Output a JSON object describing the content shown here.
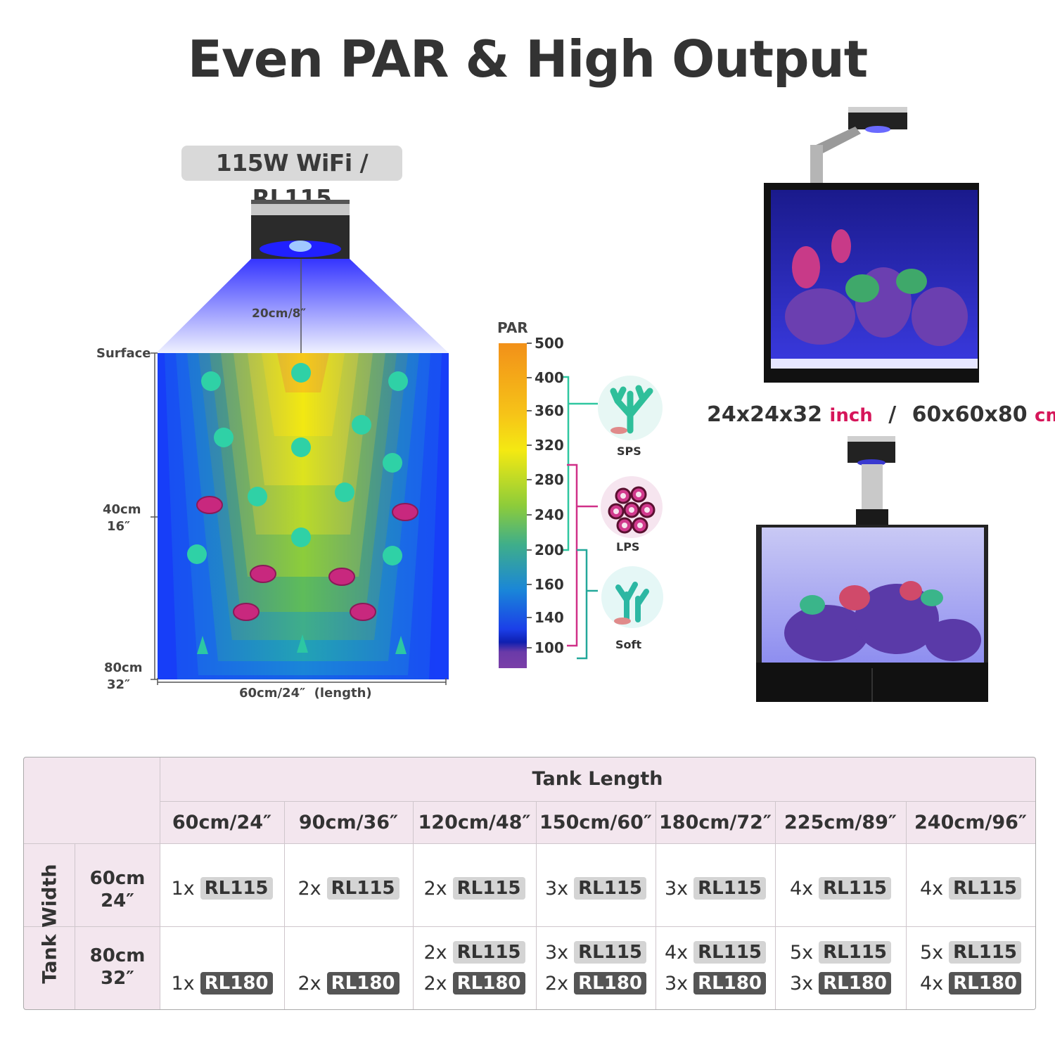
{
  "title": "Even PAR & High Output",
  "model_badge": "115W WiFi / RL115",
  "diagram": {
    "mount_height": "20cm/8″",
    "surface": "Surface",
    "depth_mid_cm": "40cm",
    "depth_mid_in": "16″",
    "depth_bottom_cm": "80cm",
    "depth_bottom_in": "32″",
    "length": "60cm/24″  (length)"
  },
  "scale": {
    "title": "PAR",
    "ticks": [
      "500",
      "400",
      "360",
      "320",
      "280",
      "240",
      "200",
      "160",
      "140",
      "100"
    ],
    "colors": {
      "top": "#f2a019",
      "mid": "#f4dd12",
      "green": "#6fbf3b",
      "blue": "#1e4ee6",
      "bottom": "#7b3fa8"
    }
  },
  "corals": [
    {
      "label": "SPS",
      "color": "#2fbf9a"
    },
    {
      "label": "LPS",
      "color": "#c8287e"
    },
    {
      "label": "Soft",
      "color": "#2cb7a3"
    }
  ],
  "tank_dims": {
    "inch_value": "24x24x32",
    "inch_unit": "inch",
    "sep": "/",
    "cm_value": "60x60x80",
    "cm_unit": "cm"
  },
  "table": {
    "col_group_header": "Tank Length",
    "row_group_header": "Tank Width",
    "columns": [
      "60cm/24″",
      "90cm/36″",
      "120cm/48″",
      "150cm/60″",
      "180cm/72″",
      "225cm/89″",
      "240cm/96″"
    ],
    "rows": [
      {
        "width_cm": "60cm",
        "width_in": "24″",
        "cells": [
          [
            {
              "qty": "1x",
              "model": "RL115"
            }
          ],
          [
            {
              "qty": "2x",
              "model": "RL115"
            }
          ],
          [
            {
              "qty": "2x",
              "model": "RL115"
            }
          ],
          [
            {
              "qty": "3x",
              "model": "RL115"
            }
          ],
          [
            {
              "qty": "3x",
              "model": "RL115"
            }
          ],
          [
            {
              "qty": "4x",
              "model": "RL115"
            }
          ],
          [
            {
              "qty": "4x",
              "model": "RL115"
            }
          ]
        ]
      },
      {
        "width_cm": "80cm",
        "width_in": "32″",
        "cells": [
          [
            {
              "qty": "1x",
              "model": "RL180"
            }
          ],
          [
            {
              "qty": "2x",
              "model": "RL180"
            }
          ],
          [
            {
              "qty": "2x",
              "model": "RL115"
            },
            {
              "qty": "2x",
              "model": "RL180"
            }
          ],
          [
            {
              "qty": "3x",
              "model": "RL115"
            },
            {
              "qty": "2x",
              "model": "RL180"
            }
          ],
          [
            {
              "qty": "4x",
              "model": "RL115"
            },
            {
              "qty": "3x",
              "model": "RL180"
            }
          ],
          [
            {
              "qty": "5x",
              "model": "RL115"
            },
            {
              "qty": "3x",
              "model": "RL180"
            }
          ],
          [
            {
              "qty": "5x",
              "model": "RL115"
            },
            {
              "qty": "4x",
              "model": "RL180"
            }
          ]
        ]
      }
    ]
  }
}
